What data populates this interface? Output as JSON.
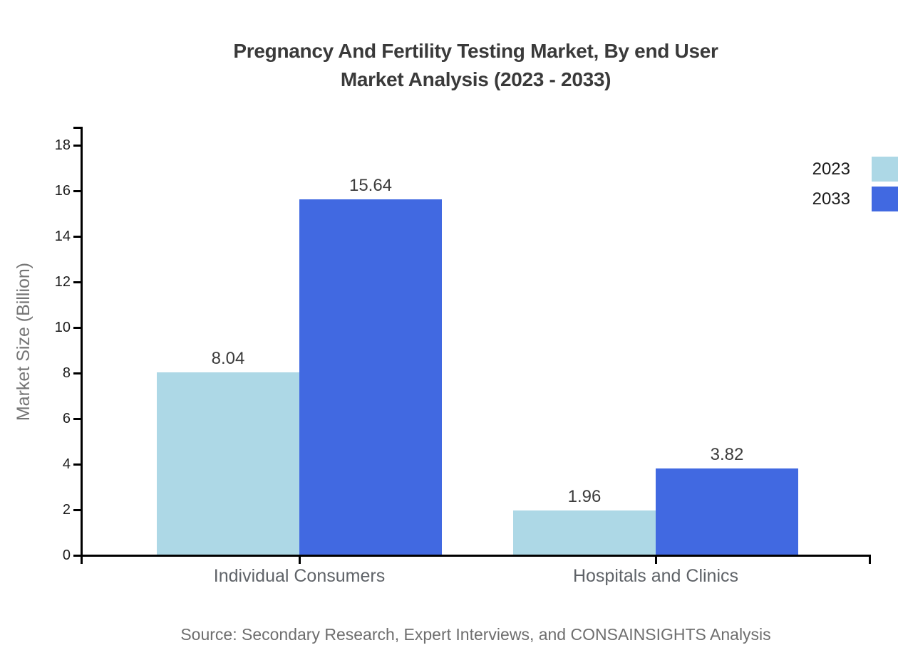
{
  "title": {
    "line1": "Pregnancy And Fertility Testing Market, By end User",
    "line2": "Market Analysis (2023 - 2033)"
  },
  "source": "Source: Secondary Research, Expert Interviews, and CONSAINSIGHTS Analysis",
  "colors": {
    "series_2023": "#ADD8E6",
    "series_2033": "#4169E1",
    "axis": "#000000",
    "title_text": "#3a3a3a",
    "tick_text": "#1c1c1c",
    "category_text": "#5f6368",
    "axis_title_text": "#757575",
    "source_text": "#6e6e6e",
    "background": "#ffffff"
  },
  "chart_data": {
    "type": "bar",
    "categories": [
      "Individual Consumers",
      "Hospitals and Clinics"
    ],
    "series": [
      {
        "name": "2023",
        "color": "#ADD8E6",
        "values": [
          8.04,
          1.96
        ]
      },
      {
        "name": "2033",
        "color": "#4169E1",
        "values": [
          15.64,
          3.82
        ]
      }
    ],
    "value_labels": [
      [
        "8.04",
        "1.96"
      ],
      [
        "15.64",
        "3.82"
      ]
    ],
    "title": "Pregnancy And Fertility Testing Market, By end User Market Analysis (2023 - 2033)",
    "xlabel": "",
    "ylabel": "Market Size (Billion)",
    "ylim": [
      0,
      18
    ],
    "yticks": [
      0,
      2,
      4,
      6,
      8,
      10,
      12,
      14,
      16,
      18
    ],
    "grid": false,
    "legend_position": "top-right"
  }
}
